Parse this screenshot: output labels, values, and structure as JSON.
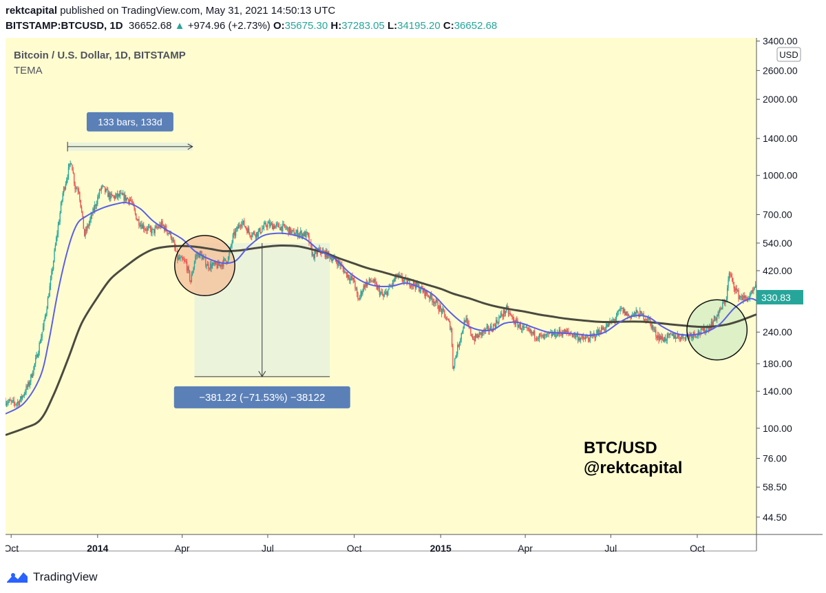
{
  "header": {
    "author": "rektcapital",
    "published_text": "published on TradingView.com, May 31, 2021 14:50:13 UTC",
    "symbol": "BITSTAMP:BTCUSD, 1D",
    "last": "36652.68",
    "arrow": "▲",
    "change": "+974.96 (+2.73%)",
    "o_label": "O:",
    "o_value": "35675.30",
    "h_label": "H:",
    "h_value": "37283.05",
    "l_label": "L:",
    "l_value": "34195.20",
    "c_label": "C:",
    "c_value": "36652.68"
  },
  "chart_legend": {
    "title": "Bitcoin / U.S. Dollar, 1D, BITSTAMP",
    "indicator": "TEMA"
  },
  "currency_label": "USD",
  "price_tag": "330.83",
  "measure_label": "133 bars, 133d",
  "drawdown_label": "−381.22 (−71.53%) −38122",
  "watermark": [
    "BTC/USD",
    "@rektcapital"
  ],
  "footer": {
    "label": "TradingView"
  },
  "colors": {
    "background": "#fffdd0",
    "up": "#26a69a",
    "down": "#ef5350",
    "tema_fast": "#5a5ee6",
    "tema_slow": "#4b4a3f",
    "label_box": "#5b80b8",
    "zone_fill": "#e9f2dc",
    "circle_orange": "#f5c5a0",
    "circle_green": "#d7edc4"
  },
  "chart_data": {
    "type": "candlestick",
    "title": "Bitcoin / U.S. Dollar, 1D, BITSTAMP",
    "y_scale": "log",
    "ylim": [
      38,
      3500
    ],
    "y_ticks": [
      3400,
      2600,
      2000,
      1400,
      1000,
      700,
      540,
      420,
      240,
      180,
      140,
      100,
      76,
      58.5,
      44.5
    ],
    "y_tick_labels": [
      "3400.00",
      "2600.00",
      "2000.00",
      "1400.00",
      "1000.00",
      "700.00",
      "540.00",
      "420.00",
      "240.00",
      "180.00",
      "140.00",
      "100.00",
      "76.00",
      "58.50",
      "44.50"
    ],
    "x_range": [
      "2013-09-25",
      "2015-12-03"
    ],
    "x_ticks": [
      {
        "date": "2013-10-01",
        "label": "Oct",
        "bold": false
      },
      {
        "date": "2014-01-01",
        "label": "2014",
        "bold": true
      },
      {
        "date": "2014-04-01",
        "label": "Apr",
        "bold": false
      },
      {
        "date": "2014-07-01",
        "label": "Jul",
        "bold": false
      },
      {
        "date": "2014-10-01",
        "label": "Oct",
        "bold": false
      },
      {
        "date": "2015-01-01",
        "label": "2015",
        "bold": true
      },
      {
        "date": "2015-04-01",
        "label": "Apr",
        "bold": false
      },
      {
        "date": "2015-07-01",
        "label": "Jul",
        "bold": false
      },
      {
        "date": "2015-10-01",
        "label": "Oct",
        "bold": false
      }
    ],
    "price_path": [
      [
        "2013-09-25",
        128
      ],
      [
        "2013-10-05",
        125
      ],
      [
        "2013-10-10",
        128
      ],
      [
        "2013-10-20",
        150
      ],
      [
        "2013-10-28",
        190
      ],
      [
        "2013-11-05",
        260
      ],
      [
        "2013-11-12",
        380
      ],
      [
        "2013-11-18",
        560
      ],
      [
        "2013-11-25",
        850
      ],
      [
        "2013-12-01",
        1050
      ],
      [
        "2013-12-04",
        1140
      ],
      [
        "2013-12-08",
        900
      ],
      [
        "2013-12-12",
        880
      ],
      [
        "2013-12-18",
        580
      ],
      [
        "2013-12-25",
        680
      ],
      [
        "2014-01-05",
        900
      ],
      [
        "2014-01-15",
        820
      ],
      [
        "2014-01-25",
        830
      ],
      [
        "2014-02-05",
        800
      ],
      [
        "2014-02-12",
        670
      ],
      [
        "2014-02-20",
        620
      ],
      [
        "2014-03-01",
        600
      ],
      [
        "2014-03-10",
        640
      ],
      [
        "2014-03-20",
        580
      ],
      [
        "2014-03-27",
        470
      ],
      [
        "2014-04-05",
        450
      ],
      [
        "2014-04-10",
        380
      ],
      [
        "2014-04-15",
        480
      ],
      [
        "2014-04-20",
        490
      ],
      [
        "2014-04-28",
        440
      ],
      [
        "2014-05-10",
        440
      ],
      [
        "2014-05-20",
        470
      ],
      [
        "2014-05-25",
        570
      ],
      [
        "2014-06-03",
        660
      ],
      [
        "2014-06-12",
        590
      ],
      [
        "2014-06-20",
        590
      ],
      [
        "2014-06-30",
        640
      ],
      [
        "2014-07-10",
        630
      ],
      [
        "2014-07-20",
        620
      ],
      [
        "2014-07-28",
        590
      ],
      [
        "2014-08-05",
        590
      ],
      [
        "2014-08-12",
        580
      ],
      [
        "2014-08-18",
        480
      ],
      [
        "2014-08-25",
        505
      ],
      [
        "2014-09-05",
        480
      ],
      [
        "2014-09-15",
        450
      ],
      [
        "2014-09-22",
        410
      ],
      [
        "2014-10-01",
        380
      ],
      [
        "2014-10-05",
        320
      ],
      [
        "2014-10-12",
        370
      ],
      [
        "2014-10-20",
        385
      ],
      [
        "2014-11-01",
        330
      ],
      [
        "2014-11-10",
        370
      ],
      [
        "2014-11-15",
        400
      ],
      [
        "2014-11-25",
        380
      ],
      [
        "2014-12-05",
        370
      ],
      [
        "2014-12-15",
        345
      ],
      [
        "2014-12-25",
        320
      ],
      [
        "2015-01-05",
        280
      ],
      [
        "2015-01-12",
        250
      ],
      [
        "2015-01-14",
        175
      ],
      [
        "2015-01-20",
        215
      ],
      [
        "2015-01-27",
        270
      ],
      [
        "2015-02-05",
        225
      ],
      [
        "2015-02-15",
        240
      ],
      [
        "2015-02-25",
        250
      ],
      [
        "2015-03-05",
        275
      ],
      [
        "2015-03-12",
        295
      ],
      [
        "2015-03-20",
        265
      ],
      [
        "2015-03-31",
        245
      ],
      [
        "2015-04-10",
        235
      ],
      [
        "2015-04-20",
        228
      ],
      [
        "2015-04-30",
        235
      ],
      [
        "2015-05-10",
        240
      ],
      [
        "2015-05-20",
        237
      ],
      [
        "2015-06-01",
        225
      ],
      [
        "2015-06-10",
        228
      ],
      [
        "2015-06-20",
        244
      ],
      [
        "2015-06-28",
        255
      ],
      [
        "2015-07-05",
        270
      ],
      [
        "2015-07-12",
        295
      ],
      [
        "2015-07-20",
        278
      ],
      [
        "2015-07-30",
        285
      ],
      [
        "2015-08-10",
        270
      ],
      [
        "2015-08-18",
        235
      ],
      [
        "2015-08-25",
        225
      ],
      [
        "2015-09-05",
        232
      ],
      [
        "2015-09-15",
        230
      ],
      [
        "2015-09-25",
        235
      ],
      [
        "2015-10-05",
        240
      ],
      [
        "2015-10-15",
        255
      ],
      [
        "2015-10-25",
        290
      ],
      [
        "2015-11-01",
        330
      ],
      [
        "2015-11-04",
        410
      ],
      [
        "2015-11-08",
        375
      ],
      [
        "2015-11-14",
        335
      ],
      [
        "2015-11-20",
        325
      ],
      [
        "2015-11-26",
        330
      ],
      [
        "2015-12-02",
        360
      ]
    ],
    "tema_fast": [
      [
        "2013-09-25",
        114
      ],
      [
        "2013-10-15",
        126
      ],
      [
        "2013-11-01",
        160
      ],
      [
        "2013-11-10",
        220
      ],
      [
        "2013-11-20",
        350
      ],
      [
        "2013-12-01",
        520
      ],
      [
        "2013-12-10",
        640
      ],
      [
        "2013-12-20",
        690
      ],
      [
        "2014-01-05",
        740
      ],
      [
        "2014-01-20",
        770
      ],
      [
        "2014-02-01",
        780
      ],
      [
        "2014-02-15",
        740
      ],
      [
        "2014-03-01",
        660
      ],
      [
        "2014-03-15",
        610
      ],
      [
        "2014-04-01",
        560
      ],
      [
        "2014-04-15",
        500
      ],
      [
        "2014-05-01",
        465
      ],
      [
        "2014-05-15",
        450
      ],
      [
        "2014-05-28",
        460
      ],
      [
        "2014-06-10",
        520
      ],
      [
        "2014-06-25",
        575
      ],
      [
        "2014-07-10",
        590
      ],
      [
        "2014-07-25",
        585
      ],
      [
        "2014-08-10",
        560
      ],
      [
        "2014-08-25",
        505
      ],
      [
        "2014-09-10",
        470
      ],
      [
        "2014-09-25",
        415
      ],
      [
        "2014-10-10",
        380
      ],
      [
        "2014-10-25",
        365
      ],
      [
        "2014-11-10",
        365
      ],
      [
        "2014-11-25",
        375
      ],
      [
        "2014-12-10",
        360
      ],
      [
        "2014-12-25",
        335
      ],
      [
        "2015-01-10",
        290
      ],
      [
        "2015-01-25",
        260
      ],
      [
        "2015-02-10",
        245
      ],
      [
        "2015-02-25",
        245
      ],
      [
        "2015-03-10",
        260
      ],
      [
        "2015-03-25",
        262
      ],
      [
        "2015-04-10",
        250
      ],
      [
        "2015-04-25",
        240
      ],
      [
        "2015-05-10",
        238
      ],
      [
        "2015-05-25",
        236
      ],
      [
        "2015-06-10",
        233
      ],
      [
        "2015-06-25",
        240
      ],
      [
        "2015-07-10",
        262
      ],
      [
        "2015-07-25",
        278
      ],
      [
        "2015-08-10",
        275
      ],
      [
        "2015-08-25",
        252
      ],
      [
        "2015-09-10",
        236
      ],
      [
        "2015-09-25",
        234
      ],
      [
        "2015-10-10",
        240
      ],
      [
        "2015-10-25",
        258
      ],
      [
        "2015-11-10",
        300
      ],
      [
        "2015-11-25",
        325
      ],
      [
        "2015-12-03",
        320
      ]
    ],
    "tema_slow": [
      [
        "2013-09-25",
        94
      ],
      [
        "2013-10-15",
        100
      ],
      [
        "2013-11-01",
        108
      ],
      [
        "2013-11-15",
        135
      ],
      [
        "2013-12-01",
        190
      ],
      [
        "2013-12-15",
        260
      ],
      [
        "2014-01-01",
        330
      ],
      [
        "2014-01-15",
        390
      ],
      [
        "2014-02-01",
        440
      ],
      [
        "2014-02-15",
        480
      ],
      [
        "2014-03-01",
        510
      ],
      [
        "2014-03-15",
        522
      ],
      [
        "2014-04-01",
        526
      ],
      [
        "2014-04-15",
        522
      ],
      [
        "2014-05-01",
        512
      ],
      [
        "2014-05-15",
        502
      ],
      [
        "2014-06-01",
        505
      ],
      [
        "2014-06-15",
        514
      ],
      [
        "2014-07-01",
        523
      ],
      [
        "2014-07-15",
        528
      ],
      [
        "2014-08-01",
        525
      ],
      [
        "2014-08-15",
        512
      ],
      [
        "2014-09-01",
        492
      ],
      [
        "2014-09-15",
        470
      ],
      [
        "2014-10-01",
        448
      ],
      [
        "2014-10-15",
        430
      ],
      [
        "2014-11-01",
        414
      ],
      [
        "2014-11-15",
        400
      ],
      [
        "2014-12-01",
        386
      ],
      [
        "2014-12-15",
        372
      ],
      [
        "2015-01-01",
        356
      ],
      [
        "2015-01-15",
        340
      ],
      [
        "2015-02-01",
        326
      ],
      [
        "2015-02-15",
        313
      ],
      [
        "2015-03-01",
        303
      ],
      [
        "2015-03-15",
        296
      ],
      [
        "2015-04-01",
        289
      ],
      [
        "2015-04-15",
        282
      ],
      [
        "2015-05-01",
        276
      ],
      [
        "2015-05-15",
        271
      ],
      [
        "2015-06-01",
        267
      ],
      [
        "2015-06-15",
        264
      ],
      [
        "2015-07-01",
        263
      ],
      [
        "2015-07-15",
        264
      ],
      [
        "2015-08-01",
        264
      ],
      [
        "2015-08-15",
        262
      ],
      [
        "2015-09-01",
        258
      ],
      [
        "2015-09-15",
        255
      ],
      [
        "2015-10-01",
        252
      ],
      [
        "2015-10-15",
        252
      ],
      [
        "2015-11-01",
        257
      ],
      [
        "2015-11-15",
        266
      ],
      [
        "2015-12-03",
        282
      ]
    ],
    "measure_range": {
      "start": "2013-11-30",
      "end": "2014-04-12",
      "price": 1300
    },
    "drawdown_range": {
      "start": "2014-04-14",
      "end": "2014-09-05",
      "from_price": 540,
      "to_price": 160
    },
    "highlight_circles": [
      {
        "center_date": "2014-04-25",
        "center_price": 440,
        "radius_days": 32,
        "color": "orange"
      },
      {
        "center_date": "2015-10-22",
        "center_price": 245,
        "radius_days": 32,
        "color": "green"
      }
    ]
  }
}
